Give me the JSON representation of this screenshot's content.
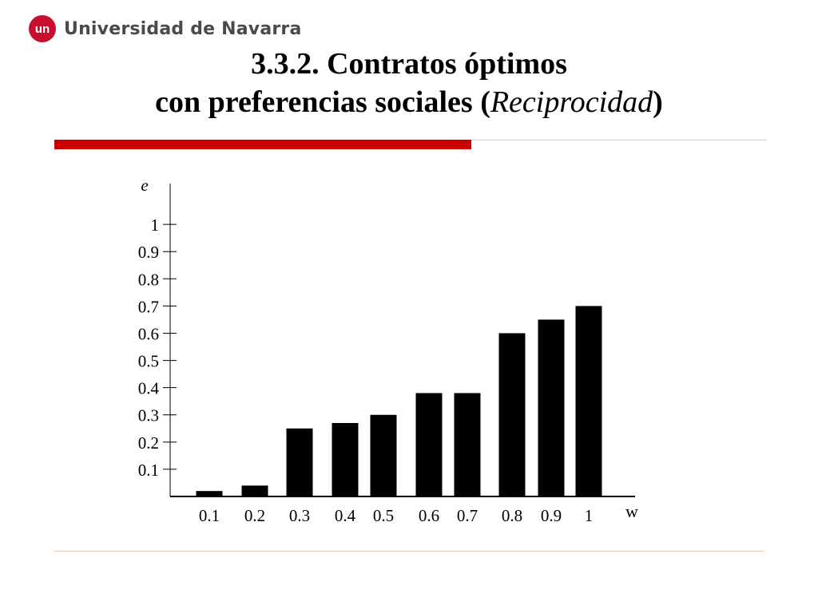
{
  "header": {
    "logo_mark": "un",
    "logo_text": "Universidad de Navarra",
    "title_line1": "3.3.2. Contratos óptimos",
    "title_line2_prefix": "con preferencias sociales (",
    "title_line2_italic": "Reciprocidad",
    "title_line2_suffix": ")"
  },
  "colors": {
    "accent_red": "#cc0000",
    "thin_rule": "#e8c8b8",
    "logo_red": "#c8102e"
  },
  "chart_data": {
    "type": "bar",
    "title": "",
    "xlabel": "w",
    "ylabel": "e",
    "categories": [
      "0.1",
      "0.2",
      "0.3",
      "0.4",
      "0.5",
      "0.6",
      "0.7",
      "0.8",
      "0.9",
      "1"
    ],
    "x": [
      0.1,
      0.2,
      0.3,
      0.4,
      0.5,
      0.6,
      0.7,
      0.8,
      0.9,
      1
    ],
    "values": [
      0.02,
      0.04,
      0.25,
      0.27,
      0.3,
      0.38,
      0.38,
      0.6,
      0.65,
      0.7
    ],
    "y_ticks": [
      0.1,
      0.2,
      0.3,
      0.4,
      0.5,
      0.6,
      0.7,
      0.8,
      0.9,
      1
    ],
    "y_tick_labels": [
      "0.1",
      "0.2",
      "0.3",
      "0.4",
      "0.5",
      "0.6",
      "0.7",
      "0.8",
      "0.9",
      "1"
    ],
    "ylim": [
      0,
      1.15
    ],
    "grid": false,
    "bar_color": "#000000"
  }
}
